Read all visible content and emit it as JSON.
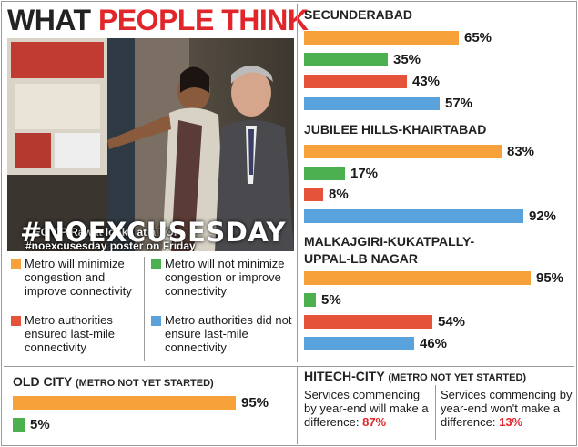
{
  "header": {
    "title_part1": "WHAT ",
    "title_part2": "PEOPLE THINK"
  },
  "photo": {
    "caption_line1": "CEC OP Rawat looks at a TOI",
    "caption_line2": "#noexcusesday poster on Friday",
    "hashtag": "#NOEXCUSESDAY"
  },
  "colors": {
    "orange": "#f7a13a",
    "green": "#4caf50",
    "red": "#e5533b",
    "blue": "#5aa2dc",
    "accent_red": "#e0262a"
  },
  "legend": {
    "items": [
      {
        "label": "Metro will minimize congestion and improve connectivity",
        "color": "#f7a13a"
      },
      {
        "label": "Metro will not minimize congestion or improve connectivity",
        "color": "#4caf50"
      },
      {
        "label": "Metro authorities ensured last-mile connectivity",
        "color": "#e5533b"
      },
      {
        "label": "Metro authorities did not ensure last-mile connectivity",
        "color": "#5aa2dc"
      }
    ]
  },
  "chart_data": [
    {
      "type": "bar",
      "title": "SECUNDERABAD",
      "categories": [
        "Metro will minimize congestion and improve connectivity",
        "Metro will not minimize congestion or improve connectivity",
        "Metro authorities ensured last-mile connectivity",
        "Metro authorities did not ensure last-mile connectivity"
      ],
      "values": [
        65,
        35,
        43,
        57
      ],
      "unit": "%"
    },
    {
      "type": "bar",
      "title": "JUBILEE HILLS-KHAIRTABAD",
      "categories": [
        "Metro will minimize congestion and improve connectivity",
        "Metro will not minimize congestion or improve connectivity",
        "Metro authorities ensured last-mile connectivity",
        "Metro authorities did not ensure last-mile connectivity"
      ],
      "values": [
        83,
        17,
        8,
        92
      ],
      "unit": "%"
    },
    {
      "type": "bar",
      "title": "MALKAJGIRI-KUKATPALLY-UPPAL-LB NAGAR",
      "title_line1": "MALKAJGIRI-KUKATPALLY-",
      "title_line2": "UPPAL-LB NAGAR",
      "categories": [
        "Metro will minimize congestion and improve connectivity",
        "Metro will not minimize congestion or improve connectivity",
        "Metro authorities ensured last-mile connectivity",
        "Metro authorities did not ensure last-mile connectivity"
      ],
      "values": [
        95,
        5,
        54,
        46
      ],
      "unit": "%"
    },
    {
      "type": "bar",
      "title": "OLD CITY",
      "subtitle": "(METRO NOT YET STARTED)",
      "categories": [
        "Metro will minimize congestion and improve connectivity",
        "Metro will not minimize congestion or improve connectivity"
      ],
      "values": [
        95,
        5
      ],
      "unit": "%"
    }
  ],
  "hitech": {
    "title": "HITECH-CITY",
    "subtitle": "(METRO NOT YET STARTED)",
    "left_text": "Services commencing by year-end will make a difference: ",
    "left_pct": "87%",
    "right_text": "Services commencing by year-end won't make a difference: ",
    "right_pct": "13%"
  }
}
